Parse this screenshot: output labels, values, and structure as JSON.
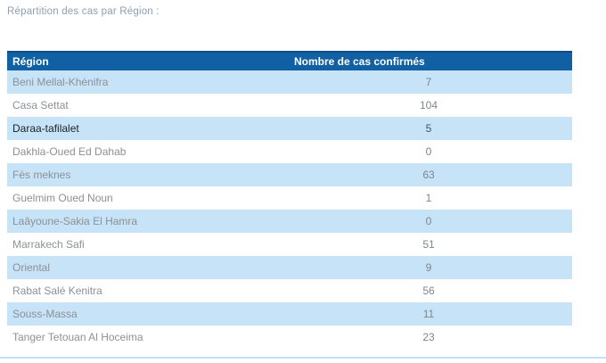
{
  "page": {
    "title": "Répartition des cas par Région :"
  },
  "table": {
    "columns": [
      "Région",
      "Nombre de cas confirmés"
    ],
    "rows": [
      {
        "region": "Beni Mellal-Khénifra",
        "value": "7",
        "highlighted": false
      },
      {
        "region": "Casa Settat",
        "value": "104",
        "highlighted": false
      },
      {
        "region": "Daraa-tafilalet",
        "value": "5",
        "highlighted": true
      },
      {
        "region": "Dakhla-Oued Ed Dahab",
        "value": "0",
        "highlighted": false
      },
      {
        "region": "Fès meknes",
        "value": "63",
        "highlighted": false
      },
      {
        "region": "Guelmim Oued Noun",
        "value": "1",
        "highlighted": false
      },
      {
        "region": "Laâyoune-Sakia El Hamra",
        "value": "0",
        "highlighted": false
      },
      {
        "region": "Marrakech Safi",
        "value": "51",
        "highlighted": false
      },
      {
        "region": "Oriental",
        "value": "9",
        "highlighted": false
      },
      {
        "region": "Rabat Salé Kenitra",
        "value": "56",
        "highlighted": false
      },
      {
        "region": "Souss-Massa",
        "value": "11",
        "highlighted": false
      },
      {
        "region": "Tanger Tetouan Al Hoceima",
        "value": "23",
        "highlighted": false
      }
    ]
  },
  "chart_data": {
    "type": "table",
    "title": "Répartition des cas par Région",
    "columns": [
      "Région",
      "Nombre de cas confirmés"
    ],
    "rows": [
      [
        "Beni Mellal-Khénifra",
        7
      ],
      [
        "Casa Settat",
        104
      ],
      [
        "Daraa-tafilalet",
        5
      ],
      [
        "Dakhla-Oued Ed Dahab",
        0
      ],
      [
        "Fès meknes",
        63
      ],
      [
        "Guelmim Oued Noun",
        1
      ],
      [
        "Laâyoune-Sakia El Hamra",
        0
      ],
      [
        "Marrakech Safi",
        51
      ],
      [
        "Oriental",
        9
      ],
      [
        "Rabat Salé Kenitra",
        56
      ],
      [
        "Souss-Massa",
        11
      ],
      [
        "Tanger Tetouan Al Hoceima",
        23
      ]
    ]
  },
  "colors": {
    "header_bg": "#1160a4",
    "header_top_border": "#0c4d86",
    "row_alt_bg": "#c6e3f7",
    "row_bg": "#ffffff",
    "header_text": "#ffffff",
    "region_text": "#8c9196",
    "value_text": "#7e868d",
    "highlight_region_text": "#20242c",
    "highlight_value_text": "#46505c",
    "title_text": "#8d9fb1",
    "bottom_line": "#c4e2f6"
  }
}
